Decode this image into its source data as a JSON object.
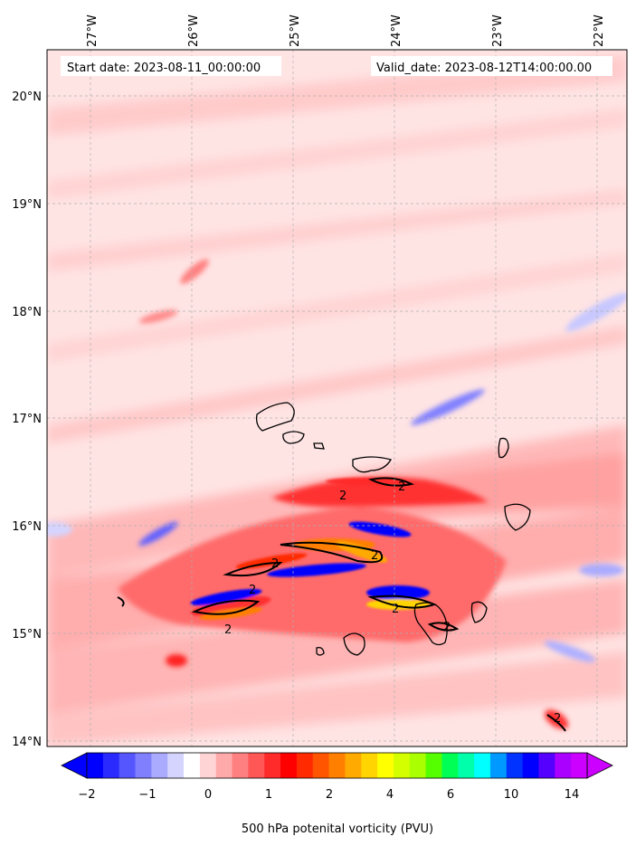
{
  "map": {
    "start_date_text": "Start date: 2023-08-11_00:00:00",
    "valid_date_text": "Valid_date: 2023-08-12T14:00:00.00",
    "lon_labels": [
      "27°W",
      "26°W",
      "25°W",
      "24°W",
      "23°W",
      "22°W"
    ],
    "lat_labels": [
      "20°N",
      "19°N",
      "18°N",
      "17°N",
      "16°N",
      "15°N",
      "14°N"
    ],
    "extent": {
      "lon_min": -27.42,
      "lon_max": -21.7,
      "lat_min": 13.95,
      "lat_max": 20.42
    },
    "contour_label": "2",
    "islands": [
      "Santo Antão",
      "São Vicente",
      "Santa Luzia",
      "São Nicolau",
      "Sal",
      "Boa Vista",
      "Maio",
      "Santiago",
      "Fogo",
      "Brava"
    ]
  },
  "colorbar": {
    "label": "500 hPa potenital vorticity (PVU)",
    "tick_labels": [
      "−2",
      "−1",
      "0",
      "1",
      "2",
      "4",
      "6",
      "10",
      "14"
    ],
    "colors": [
      "#0000ff",
      "#2a2aff",
      "#5656ff",
      "#8080ff",
      "#aaaaff",
      "#d4d4ff",
      "#ffffff",
      "#ffd4d4",
      "#ffaaaa",
      "#ff8080",
      "#ff5656",
      "#ff2a2a",
      "#ff0000",
      "#ff2a00",
      "#ff5500",
      "#ff8000",
      "#ffaa00",
      "#ffd400",
      "#ffff00",
      "#d4ff00",
      "#aaff00",
      "#55ff00",
      "#00ff55",
      "#00ffaa",
      "#00ffff",
      "#0099ff",
      "#0033ff",
      "#0000ff",
      "#5500ff",
      "#aa00ff",
      "#cc00ff"
    ]
  }
}
